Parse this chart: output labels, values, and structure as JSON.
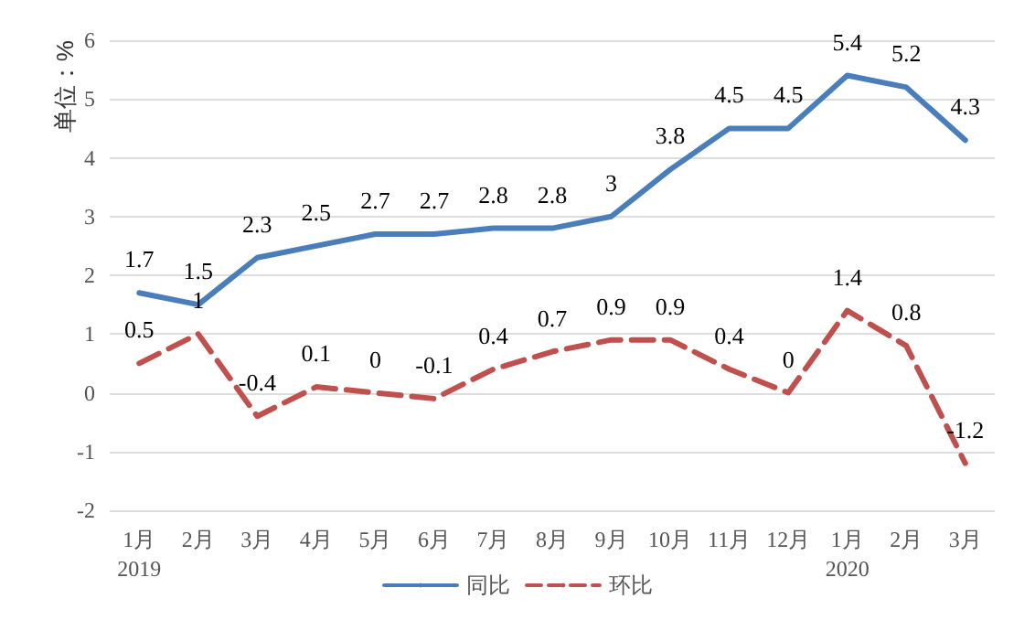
{
  "chart_data": {
    "type": "line",
    "ylabel": "单位：%",
    "categories": [
      "1月\n2019",
      "2月",
      "3月",
      "4月",
      "5月",
      "6月",
      "7月",
      "8月",
      "9月",
      "10月",
      "11月",
      "12月",
      "1月\n2020",
      "2月",
      "3月"
    ],
    "series": [
      {
        "name": "同比",
        "color": "#4a7ebb",
        "line_style": "solid",
        "values": [
          1.7,
          1.5,
          2.3,
          2.5,
          2.7,
          2.7,
          2.8,
          2.8,
          3,
          3.8,
          4.5,
          4.5,
          5.4,
          5.2,
          4.3
        ]
      },
      {
        "name": "环比",
        "color": "#c0504d",
        "line_style": "dashed",
        "values": [
          0.5,
          1,
          -0.4,
          0.1,
          0,
          -0.1,
          0.4,
          0.7,
          0.9,
          0.9,
          0.4,
          0,
          1.4,
          0.8,
          -1.2
        ]
      }
    ],
    "ylim": [
      -2,
      6
    ],
    "yticks": [
      -2,
      -1,
      0,
      1,
      2,
      3,
      4,
      5,
      6
    ],
    "grid": "y",
    "legend": "bottom",
    "data_labels": true,
    "marker": "none"
  }
}
